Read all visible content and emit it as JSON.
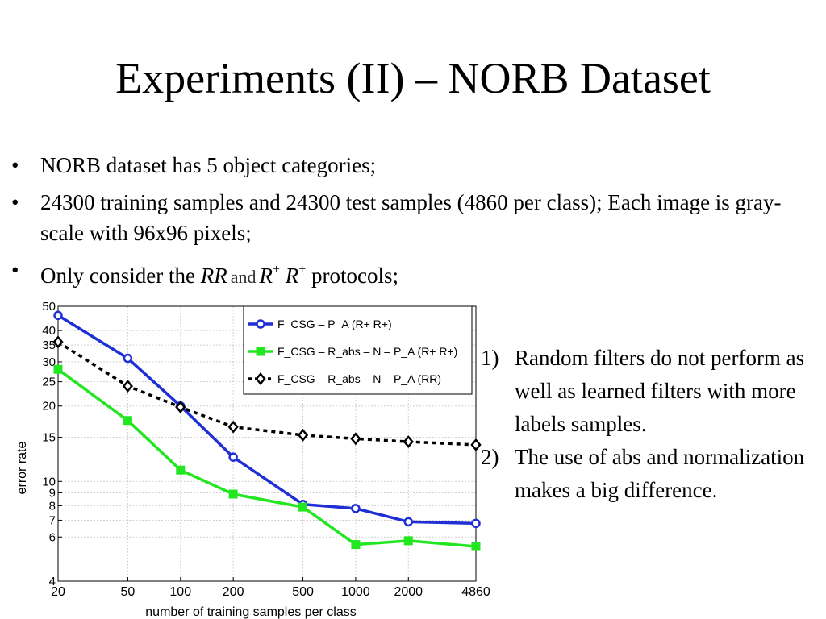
{
  "title": "Experiments (II) – NORB Dataset",
  "bullets": [
    {
      "marker": "•",
      "text": "NORB dataset has 5 object categories;"
    },
    {
      "marker": "•",
      "text": "24300 training samples and 24300 test samples (4860 per class); Each image is gray-scale with 96x96 pixels;"
    },
    {
      "marker": "•",
      "prefix": "Only consider the",
      "math1": "RR",
      "and": "and",
      "math2_base": "R",
      "math2_sup": "+",
      "suffix": "protocols;"
    }
  ],
  "notes": [
    {
      "num": "1)",
      "text": "Random filters do not perform as well as learned filters with more labels samples."
    },
    {
      "num": "2)",
      "text": "The use of abs and normalization makes a big difference."
    }
  ],
  "chart_data": {
    "type": "line",
    "xlabel": "number of training samples per class",
    "ylabel": "error rate",
    "xscale": "log",
    "yscale": "log",
    "xlim": [
      20,
      4860
    ],
    "ylim": [
      4,
      50
    ],
    "x": [
      20,
      50,
      100,
      200,
      500,
      1000,
      2000,
      4860
    ],
    "x_ticks": [
      20,
      50,
      100,
      200,
      500,
      1000,
      2000,
      4860
    ],
    "y_ticks": [
      4,
      6,
      7,
      8,
      9,
      10,
      15,
      20,
      25,
      30,
      35,
      40,
      50
    ],
    "grid": true,
    "legend_position": "top-right",
    "series": [
      {
        "name": "F_CSG – P_A (R+ R+)",
        "color": "#1f2fd6",
        "marker": "circle",
        "linestyle": "solid",
        "values": [
          46,
          31,
          20,
          12.5,
          8.1,
          7.8,
          6.9,
          6.8
        ]
      },
      {
        "name": "F_CSG – R_abs – N – P_A (R+ R+)",
        "color": "#22e61f",
        "marker": "square",
        "linestyle": "solid",
        "values": [
          28,
          17.5,
          11.1,
          8.9,
          7.9,
          5.6,
          5.8,
          5.5
        ]
      },
      {
        "name": "F_CSG – R_abs – N – P_A (RR)",
        "color": "#000000",
        "marker": "diamond",
        "linestyle": "dotted",
        "values": [
          36,
          24,
          19.8,
          16.5,
          15.3,
          14.8,
          14.4,
          14.0
        ]
      }
    ]
  }
}
